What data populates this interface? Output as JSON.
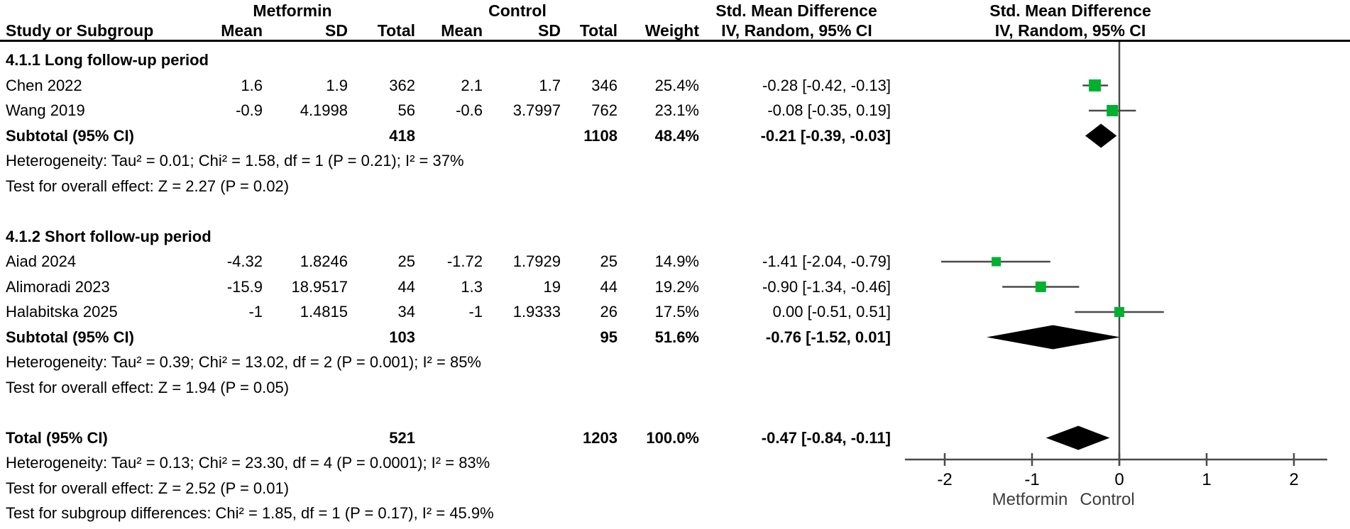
{
  "header": {
    "group1": "Metformin",
    "group2": "Control",
    "smd_text_col": "Std. Mean Difference",
    "smd_plot_col": "Std. Mean Difference",
    "col_study": "Study or Subgroup",
    "col_mean": "Mean",
    "col_sd": "SD",
    "col_total": "Total",
    "col_mean2": "Mean",
    "col_sd2": "SD",
    "col_total2": "Total",
    "col_weight": "Weight",
    "ci_method_text_col": "IV, Random, 95% CI",
    "ci_method_plot_col": "IV, Random, 95% CI"
  },
  "colors": {
    "marker_green": "#00B130",
    "diamond_black": "#000000",
    "line_gray": "#4A4A4A",
    "text_black": "#000000"
  },
  "rows": [
    {
      "type": "group",
      "label": "4.1.1 Long follow-up period"
    },
    {
      "type": "study",
      "study": "Chen 2022",
      "m_mean": "1.6",
      "m_sd": "1.9",
      "m_total": "362",
      "c_mean": "2.1",
      "c_sd": "1.7",
      "c_total": "346",
      "weight": "25.4%",
      "ci": "-0.28 [-0.42, -0.13]",
      "est": -0.28,
      "lo": -0.42,
      "hi": -0.13,
      "w": 25.4
    },
    {
      "type": "study",
      "study": "Wang 2019",
      "m_mean": "-0.9",
      "m_sd": "4.1998",
      "m_total": "56",
      "c_mean": "-0.6",
      "c_sd": "3.7997",
      "c_total": "762",
      "weight": "23.1%",
      "ci": "-0.08 [-0.35, 0.19]",
      "est": -0.08,
      "lo": -0.35,
      "hi": 0.19,
      "w": 23.1
    },
    {
      "type": "subtotal",
      "label": "Subtotal (95% CI)",
      "m_total": "418",
      "c_total": "1108",
      "weight": "48.4%",
      "ci": "-0.21 [-0.39, -0.03]",
      "est": -0.21,
      "lo": -0.39,
      "hi": -0.03
    },
    {
      "type": "note",
      "text": "Heterogeneity: Tau² = 0.01; Chi² = 1.58, df = 1 (P = 0.21); I² = 37%"
    },
    {
      "type": "note",
      "text": "Test for overall effect: Z = 2.27 (P = 0.02)"
    },
    {
      "type": "blank"
    },
    {
      "type": "group",
      "label": "4.1.2 Short follow-up period"
    },
    {
      "type": "study",
      "study": "Aiad 2024",
      "m_mean": "-4.32",
      "m_sd": "1.8246",
      "m_total": "25",
      "c_mean": "-1.72",
      "c_sd": "1.7929",
      "c_total": "25",
      "weight": "14.9%",
      "ci": "-1.41 [-2.04, -0.79]",
      "est": -1.41,
      "lo": -2.04,
      "hi": -0.79,
      "w": 14.9
    },
    {
      "type": "study",
      "study": "Alimoradi 2023",
      "m_mean": "-15.9",
      "m_sd": "18.9517",
      "m_total": "44",
      "c_mean": "1.3",
      "c_sd": "19",
      "c_total": "44",
      "weight": "19.2%",
      "ci": "-0.90 [-1.34, -0.46]",
      "est": -0.9,
      "lo": -1.34,
      "hi": -0.46,
      "w": 19.2
    },
    {
      "type": "study",
      "study": "Halabitska 2025",
      "m_mean": "-1",
      "m_sd": "1.4815",
      "m_total": "34",
      "c_mean": "-1",
      "c_sd": "1.9333",
      "c_total": "26",
      "weight": "17.5%",
      "ci": "0.00 [-0.51, 0.51]",
      "est": 0.0,
      "lo": -0.51,
      "hi": 0.51,
      "w": 17.5
    },
    {
      "type": "subtotal",
      "label": "Subtotal (95% CI)",
      "m_total": "103",
      "c_total": "95",
      "weight": "51.6%",
      "ci": "-0.76 [-1.52, 0.01]",
      "est": -0.76,
      "lo": -1.52,
      "hi": 0.01
    },
    {
      "type": "note",
      "text": "Heterogeneity: Tau² = 0.39; Chi² = 13.02, df = 2 (P = 0.001); I² = 85%"
    },
    {
      "type": "note",
      "text": "Test for overall effect: Z = 1.94 (P = 0.05)"
    },
    {
      "type": "blank"
    },
    {
      "type": "total",
      "label": "Total (95% CI)",
      "m_total": "521",
      "c_total": "1203",
      "weight": "100.0%",
      "ci": "-0.47 [-0.84, -0.11]",
      "est": -0.47,
      "lo": -0.84,
      "hi": -0.11
    },
    {
      "type": "note",
      "text": "Heterogeneity: Tau² = 0.13; Chi² = 23.30, df = 4 (P = 0.0001); I² = 83%"
    },
    {
      "type": "note",
      "text": "Test for overall effect: Z = 2.52 (P = 0.01)"
    },
    {
      "type": "note",
      "text": "Test for subgroup differences: Chi² = 1.85, df = 1 (P = 0.17), I² = 45.9%"
    }
  ],
  "axis": {
    "ticks": [
      -2,
      -1,
      0,
      1,
      2
    ],
    "tick_labels": [
      "-2",
      "-1",
      "0",
      "1",
      "2"
    ],
    "left_label": "Metformin",
    "right_label": "Control"
  },
  "chart_data": {
    "type": "forest",
    "title": "Std. Mean Difference, IV, Random, 95% CI",
    "xlabel_left": "Metformin",
    "xlabel_right": "Control",
    "xlim": [
      -2.4,
      2.4
    ],
    "axis_ticks": [
      -2,
      -1,
      0,
      1,
      2
    ],
    "subgroups": [
      {
        "name": "4.1.1 Long follow-up period",
        "studies": [
          {
            "study": "Chen 2022",
            "metformin": {
              "mean": 1.6,
              "sd": 1.9,
              "total": 362
            },
            "control": {
              "mean": 2.1,
              "sd": 1.7,
              "total": 346
            },
            "weight_pct": 25.4,
            "smd": -0.28,
            "ci": [
              -0.42,
              -0.13
            ]
          },
          {
            "study": "Wang 2019",
            "metformin": {
              "mean": -0.9,
              "sd": 4.1998,
              "total": 56
            },
            "control": {
              "mean": -0.6,
              "sd": 3.7997,
              "total": 762
            },
            "weight_pct": 23.1,
            "smd": -0.08,
            "ci": [
              -0.35,
              0.19
            ]
          }
        ],
        "subtotal": {
          "metformin_total": 418,
          "control_total": 1108,
          "weight_pct": 48.4,
          "smd": -0.21,
          "ci": [
            -0.39,
            -0.03
          ]
        },
        "heterogeneity": {
          "tau2": 0.01,
          "chi2": 1.58,
          "df": 1,
          "p": 0.21,
          "i2_pct": 37
        },
        "overall_effect": {
          "z": 2.27,
          "p": 0.02
        }
      },
      {
        "name": "4.1.2 Short follow-up period",
        "studies": [
          {
            "study": "Aiad 2024",
            "metformin": {
              "mean": -4.32,
              "sd": 1.8246,
              "total": 25
            },
            "control": {
              "mean": -1.72,
              "sd": 1.7929,
              "total": 25
            },
            "weight_pct": 14.9,
            "smd": -1.41,
            "ci": [
              -2.04,
              -0.79
            ]
          },
          {
            "study": "Alimoradi 2023",
            "metformin": {
              "mean": -15.9,
              "sd": 18.9517,
              "total": 44
            },
            "control": {
              "mean": 1.3,
              "sd": 19,
              "total": 44
            },
            "weight_pct": 19.2,
            "smd": -0.9,
            "ci": [
              -1.34,
              -0.46
            ]
          },
          {
            "study": "Halabitska 2025",
            "metformin": {
              "mean": -1,
              "sd": 1.4815,
              "total": 34
            },
            "control": {
              "mean": -1,
              "sd": 1.9333,
              "total": 26
            },
            "weight_pct": 17.5,
            "smd": 0.0,
            "ci": [
              -0.51,
              0.51
            ]
          }
        ],
        "subtotal": {
          "metformin_total": 103,
          "control_total": 95,
          "weight_pct": 51.6,
          "smd": -0.76,
          "ci": [
            -1.52,
            0.01
          ]
        },
        "heterogeneity": {
          "tau2": 0.39,
          "chi2": 13.02,
          "df": 2,
          "p": 0.001,
          "i2_pct": 85
        },
        "overall_effect": {
          "z": 1.94,
          "p": 0.05
        }
      }
    ],
    "total": {
      "metformin_total": 521,
      "control_total": 1203,
      "weight_pct": 100.0,
      "smd": -0.47,
      "ci": [
        -0.84,
        -0.11
      ]
    },
    "total_heterogeneity": {
      "tau2": 0.13,
      "chi2": 23.3,
      "df": 4,
      "p": 0.0001,
      "i2_pct": 83
    },
    "total_overall_effect": {
      "z": 2.52,
      "p": 0.01
    },
    "subgroup_differences": {
      "chi2": 1.85,
      "df": 1,
      "p": 0.17,
      "i2_pct": 45.9
    }
  }
}
